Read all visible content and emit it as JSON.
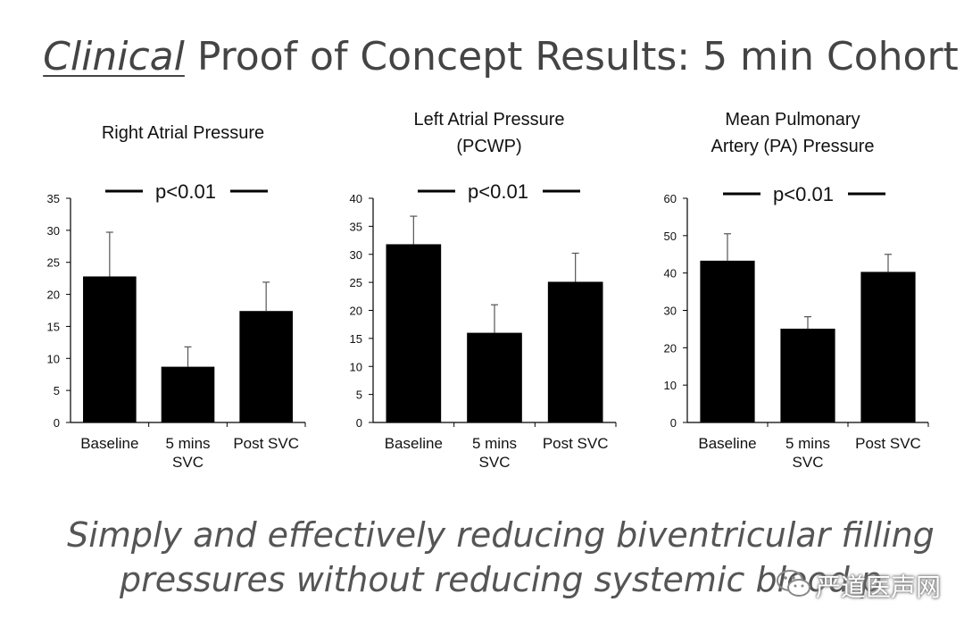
{
  "title": {
    "emphasis": "Clinical",
    "rest": " Proof of Concept Results: 5 min Cohort"
  },
  "footer": {
    "line1": "Simply and effectively reducing biventricular filling",
    "line2": "pressures without reducing systemic blood p"
  },
  "watermark": {
    "text": "严道医声网"
  },
  "chart_data": [
    {
      "type": "bar",
      "title": [
        "Right Atrial Pressure"
      ],
      "annotation": "p<0.01",
      "categories": [
        [
          "Baseline"
        ],
        [
          "5 mins",
          "SVC"
        ],
        [
          "Post SVC"
        ]
      ],
      "values": [
        22.8,
        8.7,
        17.4
      ],
      "error": [
        6.9,
        3.1,
        4.5
      ],
      "ylim": [
        0,
        35
      ],
      "yticks": [
        0,
        5,
        10,
        15,
        20,
        25,
        30,
        35
      ],
      "color": "#000000",
      "grid": false
    },
    {
      "type": "bar",
      "title": [
        "Left Atrial Pressure",
        "(PCWP)"
      ],
      "annotation": "p<0.01",
      "categories": [
        [
          "Baseline"
        ],
        [
          "5 mins",
          "SVC"
        ],
        [
          "Post SVC"
        ]
      ],
      "values": [
        31.8,
        16.0,
        25.1
      ],
      "error": [
        5.0,
        5.0,
        5.1
      ],
      "ylim": [
        0,
        40
      ],
      "yticks": [
        0,
        5,
        10,
        15,
        20,
        25,
        30,
        35,
        40
      ],
      "color": "#000000",
      "grid": false
    },
    {
      "type": "bar",
      "title": [
        "Mean Pulmonary",
        "Artery (PA) Pressure"
      ],
      "annotation": "p<0.01",
      "categories": [
        [
          "Baseline"
        ],
        [
          "5 mins",
          "SVC"
        ],
        [
          "Post SVC"
        ]
      ],
      "values": [
        43.3,
        25.1,
        40.3
      ],
      "error": [
        7.2,
        3.2,
        4.7
      ],
      "ylim": [
        0,
        60
      ],
      "yticks": [
        0,
        10,
        20,
        30,
        40,
        50,
        60
      ],
      "color": "#000000",
      "grid": false
    }
  ]
}
